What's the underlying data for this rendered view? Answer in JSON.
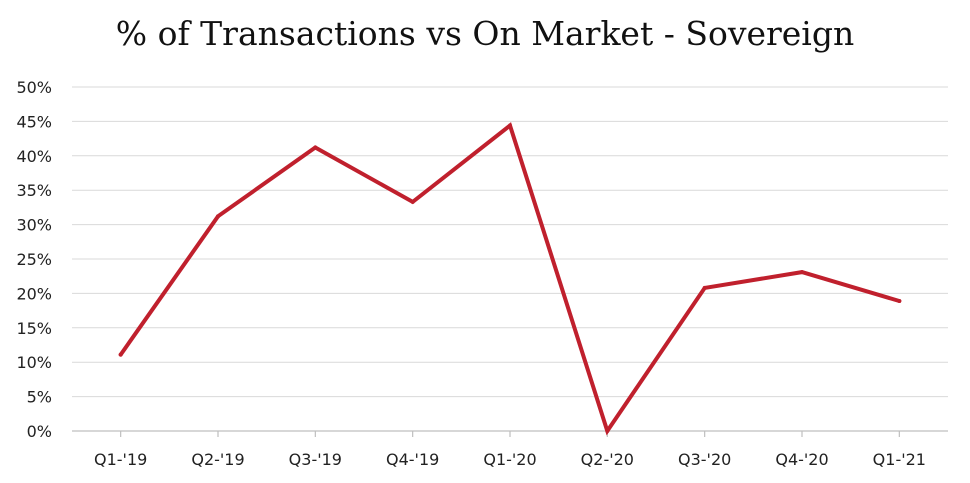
{
  "chart_data": {
    "type": "line",
    "title": "% of Transactions vs On Market - Sovereign",
    "xlabel": "",
    "ylabel": "",
    "categories": [
      "Q1-'19",
      "Q2-'19",
      "Q3-'19",
      "Q4-'19",
      "Q1-'20",
      "Q2-'20",
      "Q3-'20",
      "Q4-'20",
      "Q1-'21"
    ],
    "series": [
      {
        "values": [
          11.1,
          31.2,
          41.2,
          33.3,
          44.4,
          0,
          20.8,
          23.1,
          18.9
        ],
        "color": "#c0202d"
      }
    ],
    "ylim": [
      0,
      50
    ],
    "yticks": [
      0,
      5,
      10,
      15,
      20,
      25,
      30,
      35,
      40,
      45,
      50
    ],
    "ytick_labels": [
      "0%",
      "5%",
      "10%",
      "15%",
      "20%",
      "25%",
      "30%",
      "35%",
      "40%",
      "45%",
      "50%"
    ],
    "grid": true,
    "legend": "none",
    "colors": {
      "line": "#c0202d",
      "grid": "#d9d9d9",
      "axis": "#bfbfbf"
    }
  }
}
